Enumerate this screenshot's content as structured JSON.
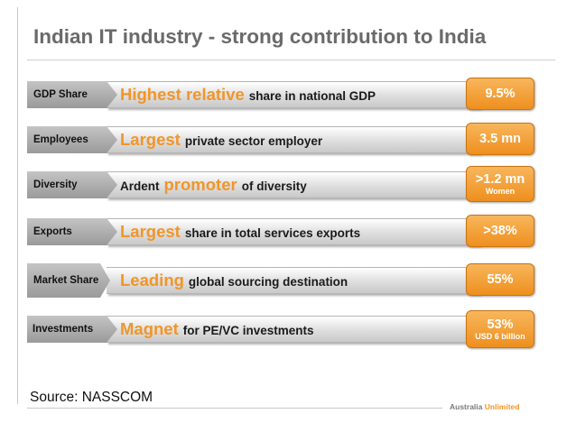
{
  "title": "Indian IT industry -  strong contribution to India",
  "rows": [
    {
      "label": "GDP Share",
      "prefix": "",
      "highlight": "Highest relative",
      "rest": "share in national GDP",
      "value": "9.5%",
      "value_sub": ""
    },
    {
      "label": "Employees",
      "prefix": "",
      "highlight": "Largest",
      "rest": "private sector employer",
      "value": "3.5 mn",
      "value_sub": ""
    },
    {
      "label": "Diversity",
      "prefix": "Ardent",
      "highlight": "promoter",
      "rest": "of diversity",
      "value": ">1.2 mn",
      "value_sub": "Women"
    },
    {
      "label": "Exports",
      "prefix": "",
      "highlight": "Largest",
      "rest": "share in total services exports",
      "value": ">38%",
      "value_sub": ""
    },
    {
      "label": "Market Share",
      "prefix": "",
      "highlight": "Leading",
      "rest": "global sourcing destination",
      "value": "55%",
      "value_sub": ""
    },
    {
      "label": "Investments",
      "prefix": "",
      "highlight": "Magnet",
      "rest": "for PE/VC investments",
      "value": "53%",
      "value_sub": "USD 6 billion"
    }
  ],
  "source": "Source: NASSCOM",
  "brand": {
    "part1": "Australia ",
    "part2": "Unlimited"
  },
  "colors": {
    "accent": "#f0962a",
    "label_grey": "#a8a8a8",
    "title_grey": "#6a6a6a"
  }
}
